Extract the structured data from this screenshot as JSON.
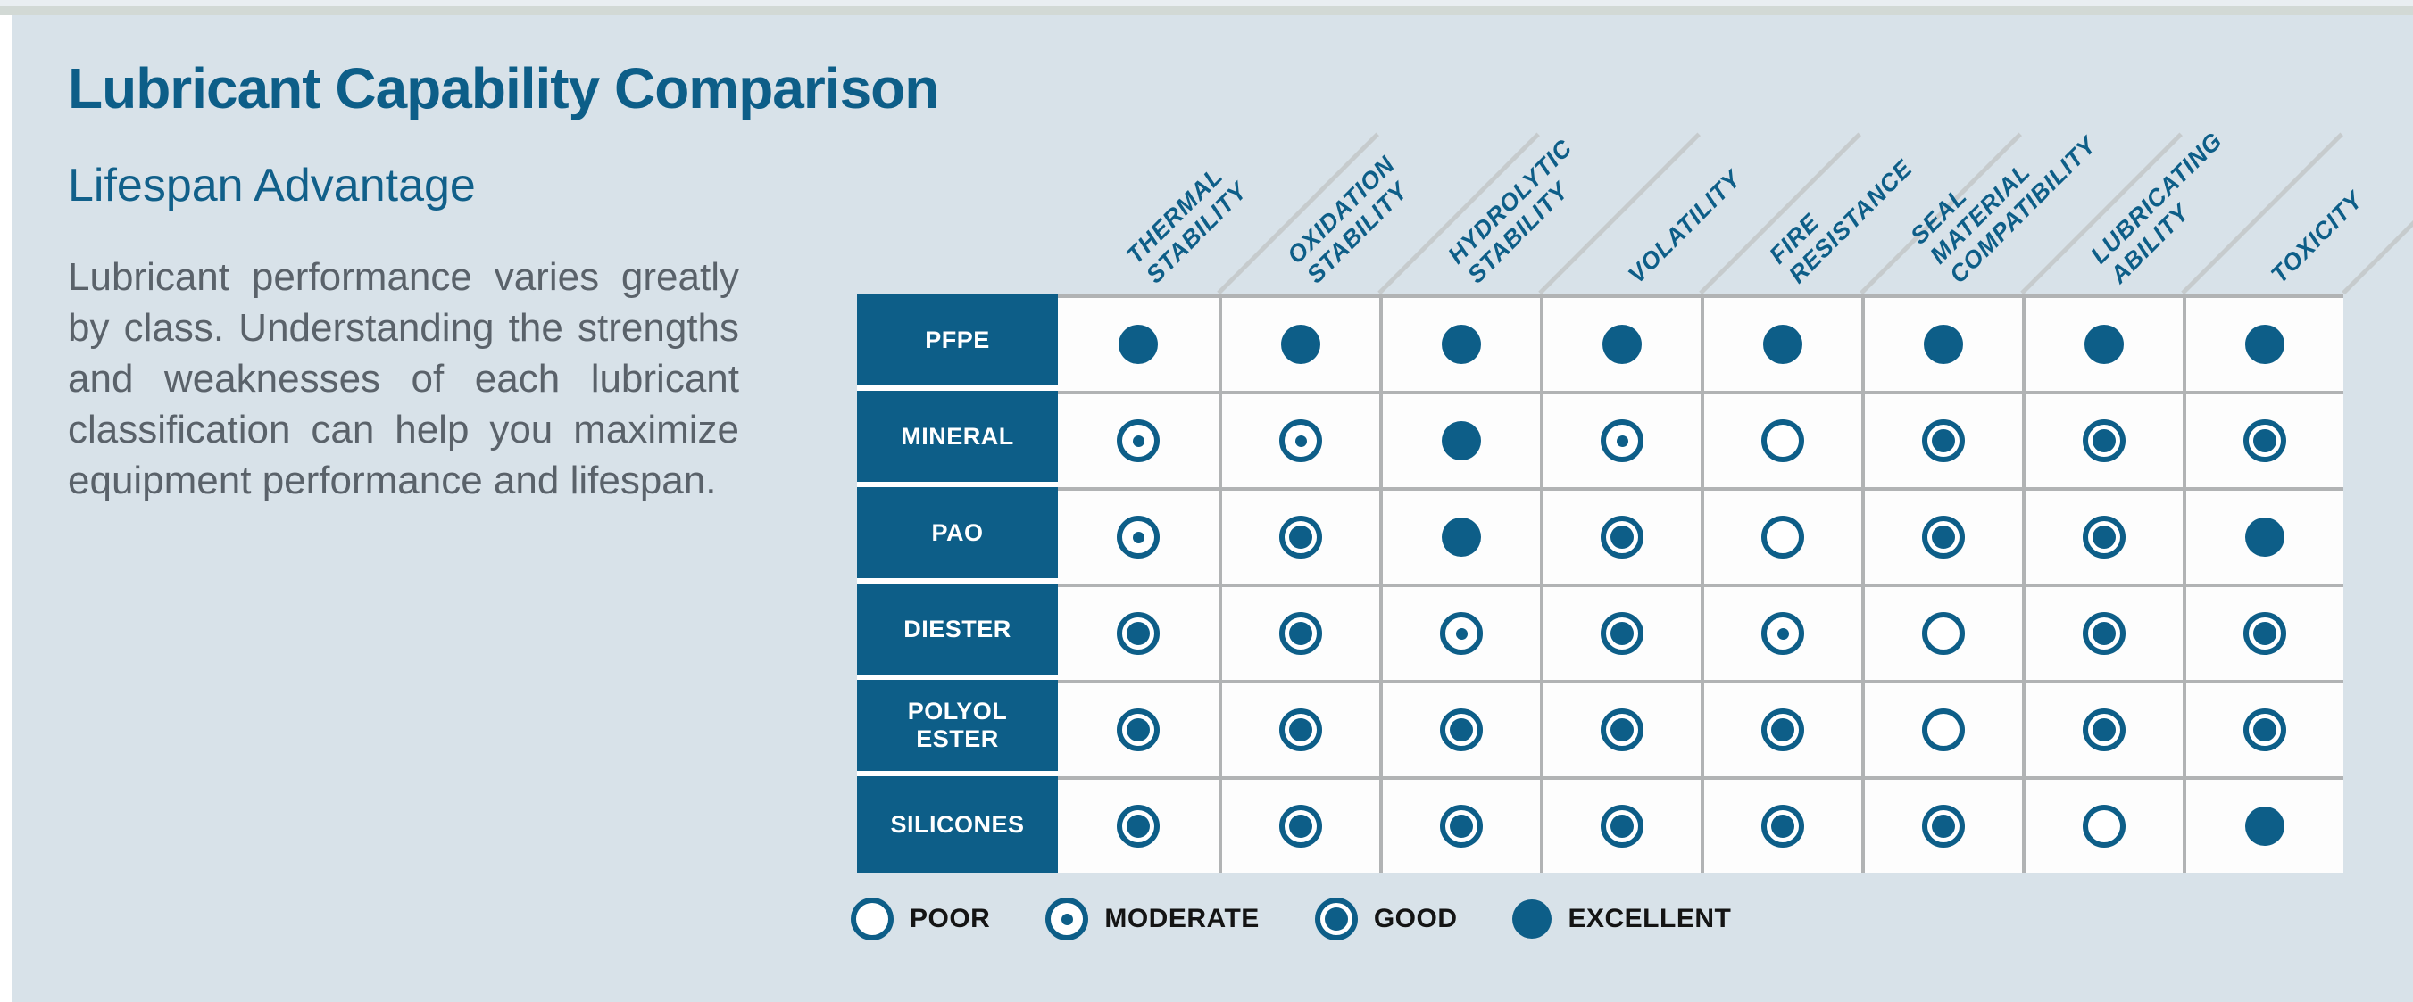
{
  "title": "Lubricant Capability Comparison",
  "subtitle": "Lifespan Advantage",
  "description": "Lubricant performance varies greatly by class. Understanding the strengths and weaknesses of each lubricant classification can help you maximize equipment performance and lifespan.",
  "colors": {
    "accent": "#0d5e88",
    "panel": "#d8e2e9",
    "cellbg": "#fdfdfd",
    "grid": "#b1b3b4",
    "diag": "#c6cbcd",
    "bodytext": "#5a626a",
    "legendtext": "#141414"
  },
  "chart_data": {
    "type": "table",
    "title": "Lubricant Capability Comparison",
    "columns": [
      "THERMAL\nSTABILITY",
      "OXIDATION\nSTABILITY",
      "HYDROLYTIC\nSTABILITY",
      "VOLATILITY",
      "FIRE\nRESISTANCE",
      "SEAL MATERIAL\nCOMPATIBILITY",
      "LUBRICATING\nABILITY",
      "TOXICITY"
    ],
    "rows": [
      {
        "label": "PFPE",
        "values": [
          "excellent",
          "excellent",
          "excellent",
          "excellent",
          "excellent",
          "excellent",
          "excellent",
          "excellent"
        ]
      },
      {
        "label": "MINERAL",
        "values": [
          "moderate",
          "moderate",
          "excellent",
          "moderate",
          "poor",
          "good",
          "good",
          "good"
        ]
      },
      {
        "label": "PAO",
        "values": [
          "moderate",
          "good",
          "excellent",
          "good",
          "poor",
          "good",
          "good",
          "excellent"
        ]
      },
      {
        "label": "DIESTER",
        "values": [
          "good",
          "good",
          "moderate",
          "good",
          "moderate",
          "poor",
          "good",
          "good"
        ]
      },
      {
        "label": "POLYOL\nESTER",
        "values": [
          "good",
          "good",
          "good",
          "good",
          "good",
          "poor",
          "good",
          "good"
        ]
      },
      {
        "label": "SILICONES",
        "values": [
          "good",
          "good",
          "good",
          "good",
          "good",
          "good",
          "poor",
          "excellent"
        ]
      }
    ],
    "legend": [
      {
        "symbol": "poor",
        "label": "POOR"
      },
      {
        "symbol": "moderate",
        "label": "MODERATE"
      },
      {
        "symbol": "good",
        "label": "GOOD"
      },
      {
        "symbol": "excellent",
        "label": "EXCELLENT"
      }
    ],
    "legend_position": "bottom"
  }
}
